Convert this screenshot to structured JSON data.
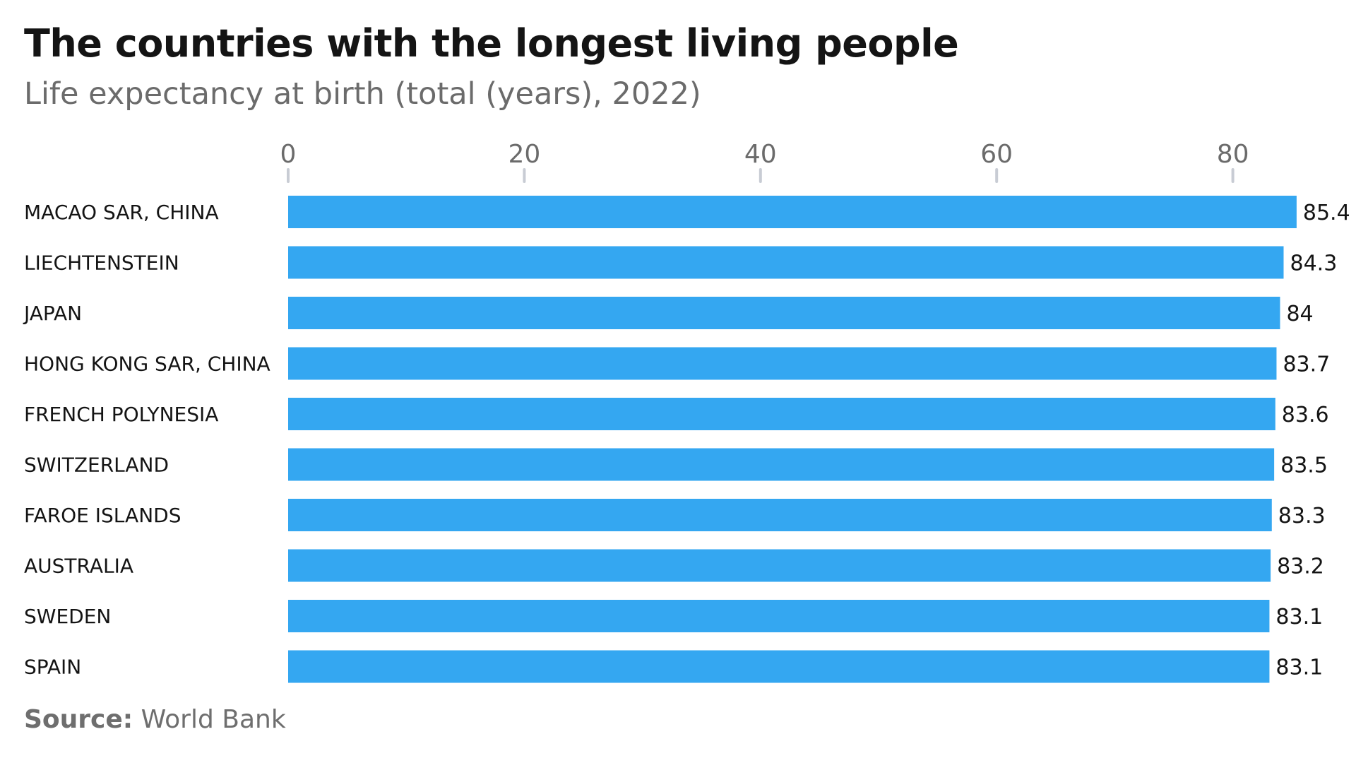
{
  "title": "The countries with the longest living people",
  "subtitle": "Life expectancy at birth (total (years), 2022)",
  "source": {
    "label": "Source:",
    "text": "World Bank"
  },
  "colors": {
    "bar": "#34a7f1",
    "axis_tick": "#c8ccd4",
    "label": "#141414",
    "muted": "#6b6b6b"
  },
  "chart_data": {
    "type": "bar",
    "orientation": "horizontal",
    "title": "The countries with the longest living people",
    "subtitle": "Life expectancy at birth (total (years), 2022)",
    "categories": [
      "MACAO SAR, CHINA",
      "LIECHTENSTEIN",
      "JAPAN",
      "HONG KONG SAR, CHINA",
      "FRENCH POLYNESIA",
      "SWITZERLAND",
      "FAROE ISLANDS",
      "AUSTRALIA",
      "SWEDEN",
      "SPAIN"
    ],
    "values": [
      85.4,
      84.3,
      84,
      83.7,
      83.6,
      83.5,
      83.3,
      83.2,
      83.1,
      83.1
    ],
    "value_labels": [
      "85.4",
      "84.3",
      "84",
      "83.7",
      "83.6",
      "83.5",
      "83.3",
      "83.2",
      "83.1",
      "83.1"
    ],
    "xticks": [
      0,
      20,
      40,
      60,
      80
    ],
    "xlim": [
      0,
      90
    ],
    "xlabel": "",
    "ylabel": "",
    "axis_position": "top",
    "grid": false,
    "legend": false
  }
}
